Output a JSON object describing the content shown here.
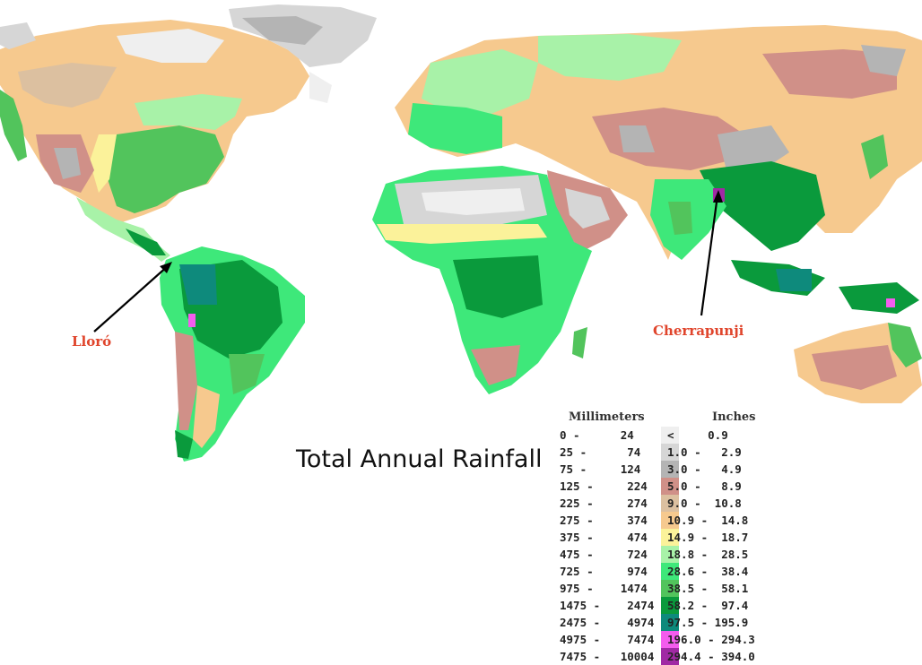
{
  "title": "Total Annual Rainfall",
  "annotations": {
    "lloro": "Lloró",
    "cherrapunji": "Cherrapunji"
  },
  "legend": {
    "mm_header": "Millimeters",
    "in_header": "Inches",
    "rows": [
      {
        "mm": "0 -      24",
        "in": "<     0.9",
        "color": "#efefef"
      },
      {
        "mm": "25 -      74",
        "in": "1.0 -   2.9",
        "color": "#d6d6d6"
      },
      {
        "mm": "75 -     124",
        "in": "3.0 -   4.9",
        "color": "#b4b4b4"
      },
      {
        "mm": "125 -     224",
        "in": "5.0 -   8.9",
        "color": "#d09088"
      },
      {
        "mm": "225 -     274",
        "in": "9.0 -  10.8",
        "color": "#dcc0a0"
      },
      {
        "mm": "275 -     374",
        "in": "10.9 -  14.8",
        "color": "#f6c98e"
      },
      {
        "mm": "375 -     474",
        "in": "14.9 -  18.7",
        "color": "#fbf29a"
      },
      {
        "mm": "475 -     724",
        "in": "18.8 -  28.5",
        "color": "#a8f2a8"
      },
      {
        "mm": "725 -     974",
        "in": "28.6 -  38.4",
        "color": "#3ee87a"
      },
      {
        "mm": "975 -    1474",
        "in": "38.5 -  58.1",
        "color": "#52c45c"
      },
      {
        "mm": "1475 -    2474",
        "in": "58.2 -  97.4",
        "color": "#0a9a3c"
      },
      {
        "mm": "2475 -    4974",
        "in": "97.5 - 195.9",
        "color": "#0e8a7c"
      },
      {
        "mm": "4975 -    7474",
        "in": "196.0 - 294.3",
        "color": "#f45cee"
      },
      {
        "mm": "7475 -   10004",
        "in": "294.4 - 394.0",
        "color": "#a02aa4"
      }
    ]
  }
}
